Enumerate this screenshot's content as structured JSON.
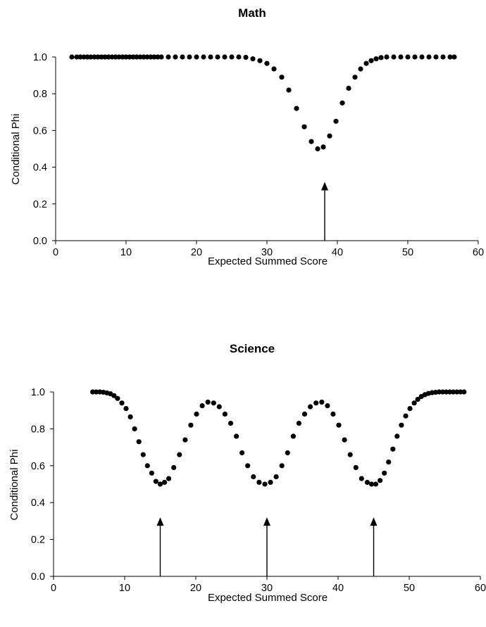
{
  "chart_data": [
    {
      "type": "scatter",
      "title": "Math",
      "xlabel": "Expected Summed Score",
      "ylabel": "Conditional Phi",
      "xlim": [
        0,
        60
      ],
      "ylim": [
        0,
        1
      ],
      "x_ticks": [
        "0",
        "10",
        "20",
        "30",
        "40",
        "50",
        "60"
      ],
      "y_ticks": [
        "0.0",
        "0.2",
        "0.4",
        "0.6",
        "0.8",
        "1.0"
      ],
      "grid": false,
      "legend": "none",
      "marker_color": "#000000",
      "series": [
        {
          "x": [
            2.3,
            3.0,
            3.5,
            4.0,
            4.5,
            5.0,
            5.5,
            6.0,
            6.5,
            7.0,
            7.5,
            8.0,
            8.5,
            9.0,
            9.5,
            10.0,
            10.5,
            11.0,
            11.5,
            12.0,
            12.5,
            13.0,
            13.5,
            14.0,
            14.5,
            15.0,
            16.0,
            17.0,
            18.0,
            19.0,
            20.0,
            21.0,
            22.0,
            23.0,
            24.0,
            25.0,
            26.0,
            27.0,
            28.0,
            29.0,
            30.0,
            31.0,
            32.1,
            33.1,
            34.2,
            35.3,
            36.3,
            37.2,
            38.0,
            38.9,
            39.8,
            40.7,
            41.6,
            42.5,
            43.3,
            44.1,
            44.8,
            45.5,
            46.2,
            47.0,
            48.0,
            49.0,
            50.0,
            51.0,
            52.0,
            53.0,
            54.0,
            55.0,
            56.0,
            56.6
          ],
          "y": [
            1.0,
            1.0,
            1.0,
            1.0,
            1.0,
            1.0,
            1.0,
            1.0,
            1.0,
            1.0,
            1.0,
            1.0,
            1.0,
            1.0,
            1.0,
            1.0,
            1.0,
            1.0,
            1.0,
            1.0,
            1.0,
            1.0,
            1.0,
            1.0,
            1.0,
            1.0,
            1.0,
            1.0,
            1.0,
            1.0,
            1.0,
            1.0,
            1.0,
            1.0,
            1.0,
            1.0,
            1.0,
            0.998,
            0.99,
            0.98,
            0.965,
            0.935,
            0.89,
            0.82,
            0.72,
            0.62,
            0.54,
            0.5,
            0.51,
            0.57,
            0.65,
            0.75,
            0.83,
            0.89,
            0.935,
            0.965,
            0.98,
            0.99,
            0.997,
            1.0,
            1.0,
            1.0,
            1.0,
            1.0,
            1.0,
            1.0,
            1.0,
            1.0,
            1.0,
            1.0
          ]
        }
      ],
      "annotations": [
        {
          "type": "arrow",
          "x": 38.2,
          "y_from": 0.0,
          "y_to": 0.32
        }
      ]
    },
    {
      "type": "scatter",
      "title": "Science",
      "xlabel": "Expected Summed Score",
      "ylabel": "Conditional Phi",
      "xlim": [
        0,
        60
      ],
      "ylim": [
        0,
        1
      ],
      "x_ticks": [
        "0",
        "10",
        "20",
        "30",
        "40",
        "50",
        "60"
      ],
      "y_ticks": [
        "0.0",
        "0.2",
        "0.4",
        "0.6",
        "0.8",
        "1.0"
      ],
      "grid": false,
      "legend": "none",
      "marker_color": "#000000",
      "series": [
        {
          "x": [
            5.5,
            6.0,
            6.5,
            7.0,
            7.5,
            8.0,
            8.5,
            9.0,
            9.6,
            10.2,
            10.8,
            11.4,
            12.0,
            12.6,
            13.2,
            13.8,
            14.4,
            15.0,
            15.6,
            16.2,
            16.9,
            17.7,
            18.5,
            19.3,
            20.1,
            20.9,
            21.7,
            22.5,
            23.3,
            24.1,
            24.9,
            25.7,
            26.5,
            27.3,
            28.1,
            28.9,
            29.7,
            30.5,
            31.3,
            32.1,
            32.9,
            33.7,
            34.5,
            35.3,
            36.1,
            36.9,
            37.7,
            38.5,
            39.3,
            40.1,
            40.9,
            41.7,
            42.5,
            43.3,
            44.1,
            44.7,
            45.3,
            45.9,
            46.5,
            47.1,
            47.7,
            48.3,
            48.9,
            49.5,
            50.1,
            50.7,
            51.2,
            51.7,
            52.2,
            52.7,
            53.2,
            53.7,
            54.2,
            54.7,
            55.2,
            55.7,
            56.2,
            56.7,
            57.2,
            57.7
          ],
          "y": [
            1.0,
            1.0,
            1.0,
            0.999,
            0.995,
            0.99,
            0.98,
            0.965,
            0.94,
            0.91,
            0.865,
            0.8,
            0.73,
            0.66,
            0.6,
            0.56,
            0.515,
            0.5,
            0.51,
            0.53,
            0.59,
            0.66,
            0.74,
            0.82,
            0.88,
            0.925,
            0.945,
            0.94,
            0.92,
            0.88,
            0.83,
            0.76,
            0.67,
            0.6,
            0.54,
            0.51,
            0.5,
            0.51,
            0.54,
            0.6,
            0.67,
            0.76,
            0.83,
            0.88,
            0.92,
            0.94,
            0.945,
            0.925,
            0.88,
            0.82,
            0.74,
            0.66,
            0.59,
            0.53,
            0.51,
            0.5,
            0.5,
            0.52,
            0.56,
            0.62,
            0.69,
            0.76,
            0.82,
            0.87,
            0.91,
            0.94,
            0.96,
            0.975,
            0.985,
            0.992,
            0.996,
            0.998,
            1.0,
            1.0,
            1.0,
            1.0,
            1.0,
            1.0,
            1.0,
            1.0
          ]
        }
      ],
      "annotations": [
        {
          "type": "arrow",
          "x": 15.0,
          "y_from": 0.0,
          "y_to": 0.32
        },
        {
          "type": "arrow",
          "x": 30.0,
          "y_from": 0.0,
          "y_to": 0.32
        },
        {
          "type": "arrow",
          "x": 45.0,
          "y_from": 0.0,
          "y_to": 0.32
        }
      ]
    }
  ]
}
